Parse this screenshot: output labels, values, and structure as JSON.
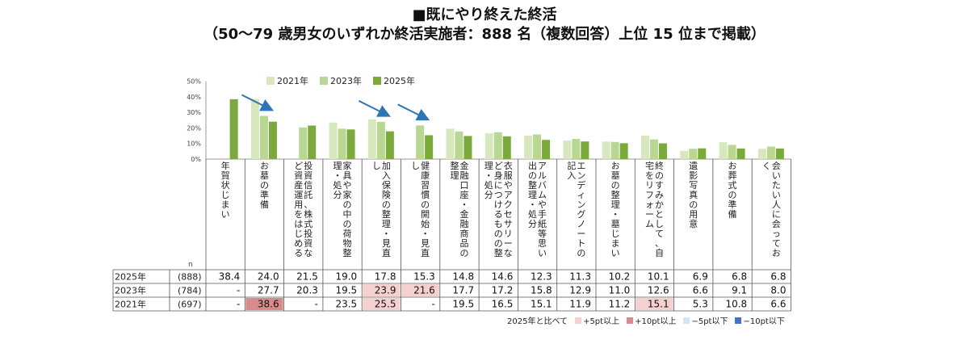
{
  "title": "■既にやり終えた終活",
  "subtitle": "（50〜79 歳男女のいずれか終活実施者：888 名（複数回答）上位 15 位まで掲載）",
  "colors": {
    "s2021": "#d8e8be",
    "s2023": "#b7d792",
    "s2025": "#7aaa3c",
    "plus5": "#f5d0d0",
    "plus10": "#d88b8b",
    "minus5": "#d6e4f2",
    "minus10": "#4472c4",
    "arrow": "#2e75b6"
  },
  "n_label": "n",
  "comparison_caption": "2025年と比べて",
  "comparison_legend": [
    {
      "label": "+5pt以上",
      "color": "#f5d0d0"
    },
    {
      "label": "+10pt以上",
      "color": "#d88b8b"
    },
    {
      "label": "−5pt以下",
      "color": "#d6e4f2"
    },
    {
      "label": "−10pt以下",
      "color": "#4472c4"
    }
  ],
  "chart_data": {
    "type": "bar",
    "ylim": [
      0,
      50
    ],
    "yticks": [
      "0%",
      "10%",
      "20%",
      "30%",
      "40%",
      "50%"
    ],
    "categories": [
      "年賀状じまい",
      "お墓の準備",
      "投資信託、株式投資など資産運用をはじめる",
      "家具や家の中の荷物整理・処分",
      "加入保険の整理・見直し",
      "健康習慣の開始・見直し",
      "金融口座・金融商品の整理",
      "衣服やアクセサリーなど身につけるものの整理・処分",
      "アルバムや手紙等思い出の整理・処分",
      "エンディングノートの記入",
      "お墓の整理・墓じまい",
      "終のすみかとして、自宅をリフォーム",
      "遺影写真の用意",
      "お葬式の準備",
      "会いたい人に会っておく"
    ],
    "series": [
      {
        "name": "2021年",
        "n": "(697)",
        "values": [
          null,
          38.6,
          null,
          23.5,
          25.5,
          null,
          19.5,
          16.5,
          15.1,
          11.9,
          11.2,
          15.1,
          5.3,
          10.8,
          6.6
        ],
        "display": [
          "-",
          "38.6",
          "-",
          "23.5",
          "25.5",
          "-",
          "19.5",
          "16.5",
          "15.1",
          "11.9",
          "11.2",
          "15.1",
          "5.3",
          "10.8",
          "6.6"
        ]
      },
      {
        "name": "2023年",
        "n": "(784)",
        "values": [
          null,
          27.7,
          20.3,
          19.5,
          23.9,
          21.6,
          17.7,
          17.2,
          15.8,
          12.9,
          11.0,
          12.6,
          6.6,
          9.1,
          8.0
        ],
        "display": [
          "-",
          "27.7",
          "20.3",
          "19.5",
          "23.9",
          "21.6",
          "17.7",
          "17.2",
          "15.8",
          "12.9",
          "11.0",
          "12.6",
          "6.6",
          "9.1",
          "8.0"
        ]
      },
      {
        "name": "2025年",
        "n": "(888)",
        "values": [
          38.4,
          24.0,
          21.5,
          19.0,
          17.8,
          15.3,
          14.8,
          14.6,
          12.3,
          11.3,
          10.2,
          10.1,
          6.9,
          6.8,
          6.8
        ],
        "display": [
          "38.4",
          "24.0",
          "21.5",
          "19.0",
          "17.8",
          "15.3",
          "14.8",
          "14.6",
          "12.3",
          "11.3",
          "10.2",
          "10.1",
          "6.9",
          "6.8",
          "6.8"
        ]
      }
    ],
    "arrows_on_categories": [
      1,
      4,
      5
    ]
  }
}
